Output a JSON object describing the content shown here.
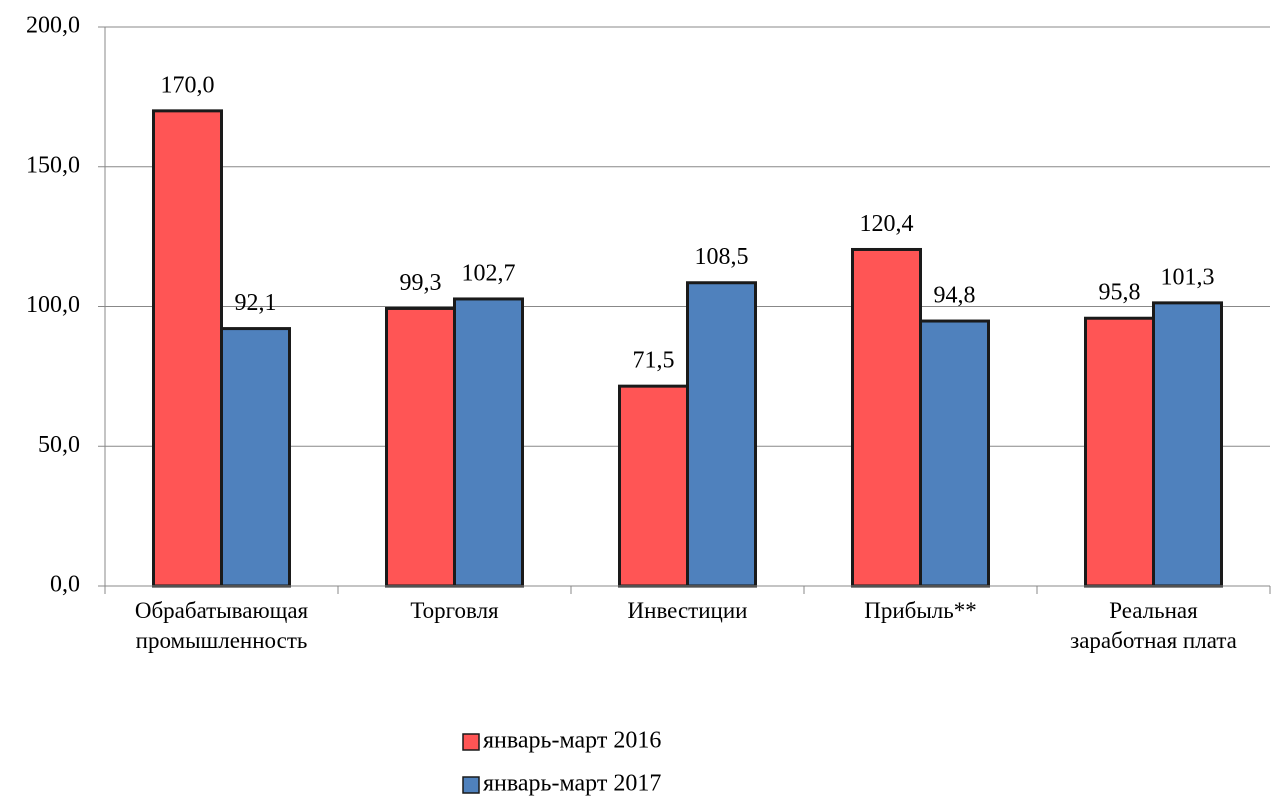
{
  "chart_data": {
    "type": "bar",
    "categories": [
      "Обрабатывающая\nпромышленность",
      "Торговля",
      "Инвестиции",
      "Прибыль**",
      "Реальная\nзаработная плата"
    ],
    "series": [
      {
        "name": "январь-март 2016",
        "color": "#ff5555",
        "values": [
          170.0,
          99.3,
          71.5,
          120.4,
          95.8
        ],
        "value_labels": [
          "170,0",
          "99,3",
          "71,5",
          "120,4",
          "95,8"
        ]
      },
      {
        "name": "январь-март 2017",
        "color": "#4f81bd",
        "values": [
          92.1,
          102.7,
          108.5,
          94.8,
          101.3
        ],
        "value_labels": [
          "92,1",
          "102,7",
          "108,5",
          "94,8",
          "101,3"
        ]
      }
    ],
    "ylim": [
      0,
      200
    ],
    "yticks": [
      {
        "value": 0,
        "label": "0,0"
      },
      {
        "value": 50,
        "label": "50,0"
      },
      {
        "value": 100,
        "label": "100,0"
      },
      {
        "value": 150,
        "label": "150,0"
      },
      {
        "value": 200,
        "label": "200,0"
      }
    ],
    "grid": true,
    "legend": "bottom"
  }
}
